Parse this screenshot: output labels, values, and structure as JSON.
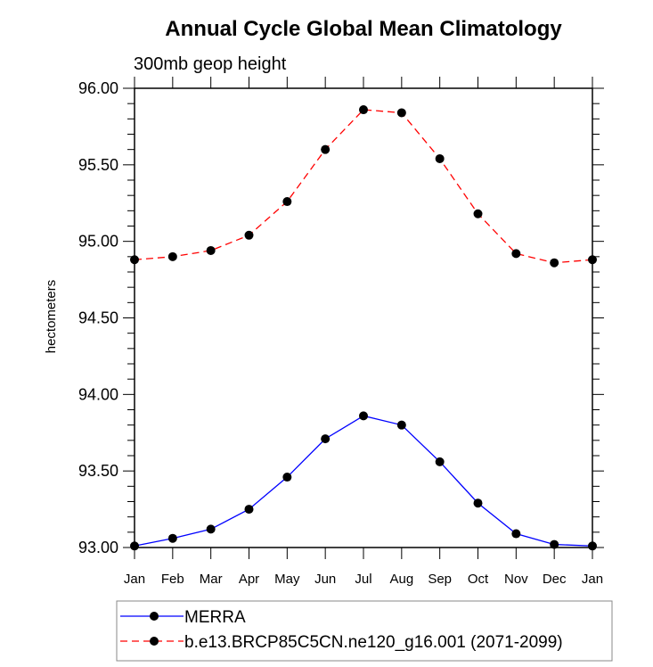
{
  "chart_data": {
    "type": "line",
    "title": "Annual Cycle Global Mean Climatology",
    "subtitle": "300mb geop height",
    "xlabel": "",
    "ylabel": "hectometers",
    "categories": [
      "Jan",
      "Feb",
      "Mar",
      "Apr",
      "May",
      "Jun",
      "Jul",
      "Aug",
      "Sep",
      "Oct",
      "Nov",
      "Dec",
      "Jan"
    ],
    "ylim": [
      93.0,
      96.0
    ],
    "yticks": [
      93.0,
      93.5,
      94.0,
      94.5,
      95.0,
      95.5,
      96.0
    ],
    "ytick_labels": [
      "93.00",
      "93.50",
      "94.00",
      "94.50",
      "95.00",
      "95.50",
      "96.00"
    ],
    "y_minor_step": 0.1,
    "grid": false,
    "legend_position": "bottom",
    "series": [
      {
        "name": "MERRA",
        "color": "#0000ff",
        "line_style": "solid",
        "marker": "filled-circle",
        "marker_color": "#000000",
        "values": [
          93.01,
          93.06,
          93.12,
          93.25,
          93.46,
          93.71,
          93.86,
          93.8,
          93.56,
          93.29,
          93.09,
          93.02,
          93.01
        ]
      },
      {
        "name": "b.e13.BRCP85C5CN.ne120_g16.001 (2071-2099)",
        "color": "#ff0000",
        "line_style": "dashed",
        "marker": "filled-circle",
        "marker_color": "#000000",
        "values": [
          94.88,
          94.9,
          94.94,
          95.04,
          95.26,
          95.6,
          95.86,
          95.84,
          95.54,
          95.18,
          94.92,
          94.86,
          94.88
        ]
      }
    ]
  }
}
